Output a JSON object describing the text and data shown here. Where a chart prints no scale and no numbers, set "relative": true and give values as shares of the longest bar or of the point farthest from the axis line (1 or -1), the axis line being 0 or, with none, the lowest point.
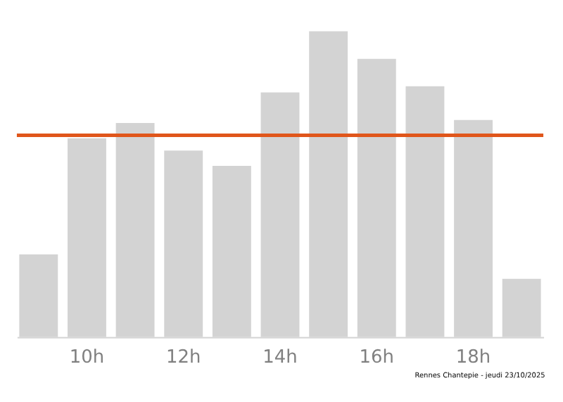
{
  "chart_data": {
    "type": "bar",
    "relative": true,
    "categories": [
      null,
      "10h",
      null,
      "12h",
      null,
      "14h",
      null,
      "16h",
      null,
      "18h",
      null
    ],
    "values": [
      0.27,
      0.65,
      0.7,
      0.61,
      0.56,
      0.8,
      1,
      0.91,
      0.82,
      0.71,
      0.19
    ],
    "color": "#d3d3d3",
    "ref_lines": [
      {
        "axis": "y",
        "value": 0.66,
        "color": "#e0561b"
      }
    ],
    "annotations": [
      "Rennes Chantepie - jeudi 23/10/2025"
    ],
    "grid": false
  }
}
